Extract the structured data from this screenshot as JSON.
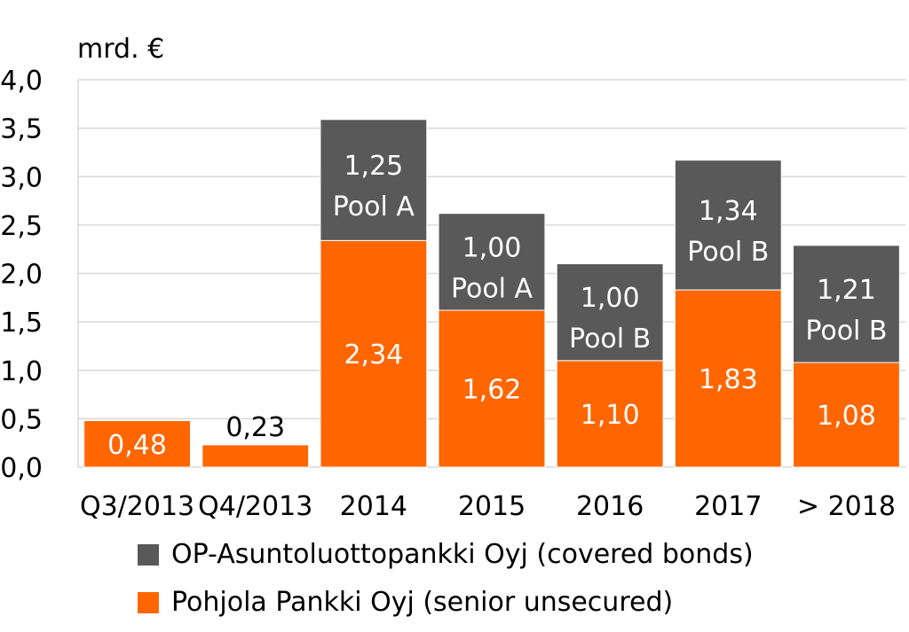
{
  "chart_data": {
    "type": "bar",
    "stacked": true,
    "unit_label": "mrd. €",
    "categories": [
      "Q3/2013",
      "Q4/2013",
      "2014",
      "2015",
      "2016",
      "2017",
      "> 2018"
    ],
    "y_ticks": [
      "0,0",
      "0,5",
      "1,0",
      "1,5",
      "2,0",
      "2,5",
      "3,0",
      "3,5",
      "4,0"
    ],
    "ylim": [
      0,
      4
    ],
    "series": [
      {
        "name": "Pohjola Pankki Oyj (senior unsecured)",
        "color": "#ff6600",
        "values": [
          0.48,
          0.23,
          2.34,
          1.62,
          1.1,
          1.83,
          1.08
        ],
        "labels": [
          "0,48",
          "0,23",
          "2,34",
          "1,62",
          "1,10",
          "1,83",
          "1,08"
        ],
        "label_position": [
          "inside",
          "above",
          "inside",
          "inside",
          "inside",
          "inside",
          "inside"
        ]
      },
      {
        "name": "OP-Asuntoluottopankki Oyj (covered bonds)",
        "color": "#595959",
        "values": [
          0,
          0,
          1.25,
          1.0,
          1.0,
          1.34,
          1.21
        ],
        "labels": [
          "",
          "",
          "1,25",
          "1,00",
          "1,00",
          "1,34",
          "1,21"
        ],
        "sublabels": [
          "",
          "",
          "Pool A",
          "Pool A",
          "Pool B",
          "Pool B",
          "Pool B"
        ]
      }
    ],
    "legend": {
      "position": "bottom",
      "order": [
        "OP-Asuntoluottopankki Oyj (covered bonds)",
        "Pohjola Pankki Oyj (senior unsecured)"
      ]
    },
    "grid": true
  }
}
